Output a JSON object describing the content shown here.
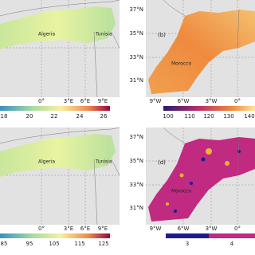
{
  "panels": [
    {
      "countries": [
        "Algeria",
        "Tunisia"
      ],
      "x_labels": [
        "0°",
        "3°E",
        "6°E",
        "9°E"
      ],
      "colorbar_labels": [
        "18",
        "20",
        "22",
        "24",
        "26"
      ]
    },
    {
      "tag": "(b)",
      "countries": [
        "Morocco"
      ],
      "y_labels": [
        "37°N",
        "35°N",
        "33°N",
        "31°N"
      ],
      "x_labels": [
        "9°W",
        "6°W",
        "3°W",
        "0°"
      ],
      "colorbar_labels": [
        "100",
        "110",
        "120",
        "130",
        "140"
      ]
    },
    {
      "countries": [
        "Algeria",
        "Tunisia"
      ],
      "x_labels": [
        "0°",
        "3°E",
        "6°E",
        "9°E"
      ],
      "colorbar_labels": [
        "85",
        "95",
        "105",
        "115",
        "125"
      ]
    },
    {
      "tag": "(d)",
      "countries": [
        "Morocco"
      ],
      "y_labels": [
        "37°N",
        "35°N",
        "33°N",
        "31°N"
      ],
      "x_labels": [
        "9°W",
        "6°W",
        "3°W",
        "0°"
      ],
      "colorbar_labels": [
        "3",
        "4"
      ]
    }
  ]
}
